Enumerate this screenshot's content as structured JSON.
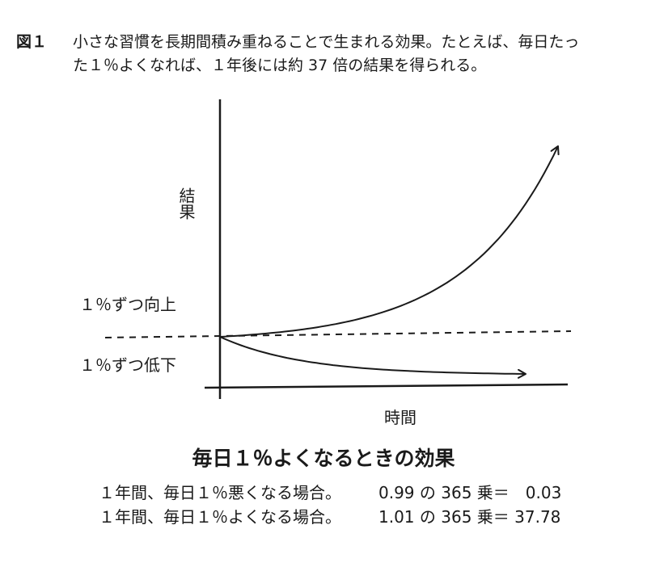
{
  "figure": {
    "label": "図１",
    "caption_line1": "小さな習慣を長期間積み重ねることで生まれる効果。たとえば、毎日たっ",
    "caption_line2": "た１％よくなれば、１年後には約 37 倍の結果を得られる。"
  },
  "chart_data": {
    "type": "line",
    "xlabel": "時間",
    "ylabel": "結果",
    "series": [
      {
        "name": "１％ずつ向上",
        "daily_factor": 1.01,
        "trend": "exponential growth"
      },
      {
        "name": "１％ずつ低下",
        "daily_factor": 0.99,
        "trend": "decay toward zero"
      }
    ],
    "baseline": "dashed horizontal line at starting value",
    "grid": false,
    "legend": "labels placed left of the curves"
  },
  "summary": {
    "title": "毎日１％よくなるときの効果",
    "rows": [
      {
        "condition": "１年間、毎日１％悪くなる場合。",
        "calculation": "0.99 の 365 乗＝　0.03",
        "base": 0.99,
        "exponent": 365,
        "result": 0.03
      },
      {
        "condition": "１年間、毎日１％よくなる場合。",
        "calculation": "1.01 の 365 乗＝ 37.78",
        "base": 1.01,
        "exponent": 365,
        "result": 37.78
      }
    ]
  }
}
